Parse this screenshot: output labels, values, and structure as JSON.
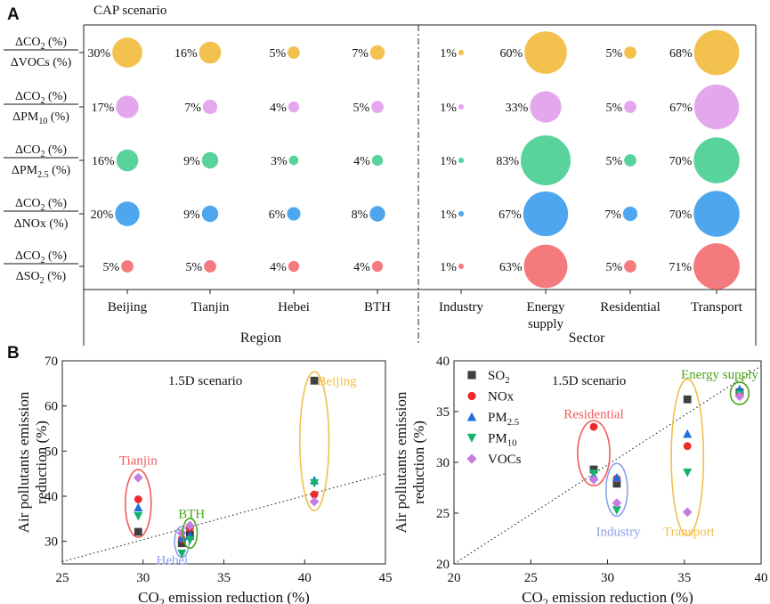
{
  "panel_a": {
    "letter": "A",
    "title": "CAP scenario",
    "rows": [
      {
        "label_num": "ΔCO",
        "num_sub": "2",
        "num_suffix": " (%)",
        "label_den": "ΔVOCs (%)",
        "den_sub": "",
        "den_suffix": "",
        "color": "#f2c14e"
      },
      {
        "label_num": "ΔCO",
        "num_sub": "2",
        "num_suffix": " (%)",
        "label_den": "ΔPM",
        "den_sub": "10",
        "den_suffix": " (%)",
        "color": "#e4a7ee"
      },
      {
        "label_num": "ΔCO",
        "num_sub": "2",
        "num_suffix": " (%)",
        "label_den": "ΔPM",
        "den_sub": "2.5",
        "den_suffix": " (%)",
        "color": "#59d39c"
      },
      {
        "label_num": "ΔCO",
        "num_sub": "2",
        "num_suffix": " (%)",
        "label_den": "ΔNOx (%)",
        "den_sub": "",
        "den_suffix": "",
        "color": "#4da6ee"
      },
      {
        "label_num": "ΔCO",
        "num_sub": "2",
        "num_suffix": " (%)",
        "label_den": "ΔSO",
        "den_sub": "2",
        "den_suffix": " (%)",
        "color": "#f57a7e"
      }
    ],
    "columns": [
      "Beijing",
      "Tianjin",
      "Hebei",
      "BTH",
      "Industry",
      "Energy supply",
      "Residential",
      "Transport"
    ],
    "column_lines": [
      [
        "Beijing"
      ],
      [
        "Tianjin"
      ],
      [
        "Hebei"
      ],
      [
        "BTH"
      ],
      [
        "Industry"
      ],
      [
        "Energy",
        "supply"
      ],
      [
        "Residential"
      ],
      [
        "Transport"
      ]
    ],
    "values": [
      [
        30,
        16,
        5,
        7,
        1,
        60,
        5,
        68
      ],
      [
        17,
        7,
        4,
        5,
        1,
        33,
        5,
        67
      ],
      [
        16,
        9,
        3,
        4,
        1,
        83,
        5,
        70
      ],
      [
        20,
        9,
        6,
        8,
        1,
        67,
        7,
        70
      ],
      [
        5,
        5,
        4,
        4,
        1,
        63,
        5,
        71
      ]
    ],
    "group_labels": [
      "Region",
      "Sector"
    ]
  },
  "panel_b": {
    "letter": "B",
    "ylabel_line1": "Air pollutants emission",
    "ylabel_line2": "reduction (%)",
    "xlabel_prefix": "CO",
    "xlabel_sub": "2",
    "xlabel_suffix": " emission reduction (%)",
    "legend": [
      {
        "name": "SO",
        "sub": "2",
        "marker": "square",
        "color": "#404040"
      },
      {
        "name": "NOx",
        "sub": "",
        "marker": "circle",
        "color": "#ee2b2b"
      },
      {
        "name": "PM",
        "sub": "2.5",
        "marker": "triangle-up",
        "color": "#1f6fe0"
      },
      {
        "name": "PM",
        "sub": "10",
        "marker": "triangle-down",
        "color": "#14b26a"
      },
      {
        "name": "VOCs",
        "sub": "",
        "marker": "diamond",
        "color": "#c77de0"
      }
    ]
  },
  "chart_data": [
    {
      "type": "bubble",
      "title": "CAP scenario",
      "columns": [
        "Beijing",
        "Tianjin",
        "Hebei",
        "BTH",
        "Industry",
        "Energy supply",
        "Residential",
        "Transport"
      ],
      "rows": [
        "ΔCO2/ΔVOCs",
        "ΔCO2/ΔPM10",
        "ΔCO2/ΔPM2.5",
        "ΔCO2/ΔNOx",
        "ΔCO2/ΔSO2"
      ],
      "unit": "%"
    },
    {
      "type": "scatter",
      "title": "1.5D scenario",
      "xlim": [
        25,
        45
      ],
      "ylim": [
        25,
        70
      ],
      "xticks": [
        25,
        30,
        35,
        40,
        45
      ],
      "yticks": [
        30,
        40,
        50,
        60,
        70
      ],
      "reference_line": {
        "x": [
          25,
          45
        ],
        "y": [
          25.5,
          45
        ]
      },
      "groups": [
        {
          "name": "Tianjin",
          "color": "#f05a5a",
          "x": 29.7,
          "values": {
            "SO2": 32.1,
            "NOx": 39.3,
            "PM2.5": 37.5,
            "PM10": 35.6,
            "VOCs": 44.1
          },
          "ellipse": {
            "cx": 29.7,
            "cy": 38.4,
            "rx": 0.8,
            "ry": 7.5
          },
          "label_pos": [
            29.7,
            48.0
          ]
        },
        {
          "name": "Hebei",
          "color": "#8ca0e8",
          "x": 32.4,
          "values": {
            "SO2": 29.6,
            "NOx": 30.5,
            "PM2.5": 30.8,
            "PM10": 27.3,
            "VOCs": 31.8
          },
          "ellipse": {
            "cx": 32.4,
            "cy": 29.9,
            "rx": 0.45,
            "ry": 3.4
          },
          "label_pos": [
            31.8,
            25.9
          ]
        },
        {
          "name": "BTH",
          "color": "#4aa61c",
          "x": 32.9,
          "values": {
            "SO2": 31.5,
            "NOx": 33.0,
            "PM2.5": 31.2,
            "PM10": 30.3,
            "VOCs": 33.5
          },
          "ellipse": {
            "cx": 32.9,
            "cy": 31.8,
            "rx": 0.45,
            "ry": 3.3
          },
          "label_pos": [
            33.0,
            36.2
          ]
        },
        {
          "name": "Beijing",
          "color": "#f2be4c",
          "x": 40.6,
          "values": {
            "SO2": 65.6,
            "NOx": 40.4,
            "PM2.5": 43.5,
            "PM10": 42.9,
            "VOCs": 38.8
          },
          "ellipse": {
            "cx": 40.6,
            "cy": 52.2,
            "rx": 0.9,
            "ry": 15.4
          },
          "label_pos": [
            42.0,
            65.6
          ]
        }
      ]
    },
    {
      "type": "scatter",
      "title": "1.5D scenario",
      "xlim": [
        20,
        40
      ],
      "ylim": [
        20,
        40
      ],
      "xticks": [
        20,
        25,
        30,
        35,
        40
      ],
      "yticks": [
        20,
        25,
        30,
        35,
        40
      ],
      "reference_line": {
        "x": [
          20,
          40
        ],
        "y": [
          20,
          39.5
        ]
      },
      "groups": [
        {
          "name": "Residential",
          "color": "#f05a5a",
          "x": 29.1,
          "values": {
            "SO2": 29.3,
            "NOx": 33.5,
            "PM2.5": 28.7,
            "PM10": 28.9,
            "VOCs": 28.3
          },
          "ellipse": {
            "cx": 29.1,
            "cy": 30.9,
            "rx": 1.05,
            "ry": 3.2
          },
          "label_pos": [
            29.1,
            34.8
          ]
        },
        {
          "name": "Industry",
          "color": "#8ca0e8",
          "x": 30.6,
          "values": {
            "SO2": 27.9,
            "NOx": 28.4,
            "PM2.5": 28.5,
            "PM10": 25.3,
            "VOCs": 26.0
          },
          "ellipse": {
            "cx": 30.6,
            "cy": 27.3,
            "rx": 0.7,
            "ry": 2.6
          },
          "label_pos": [
            30.7,
            23.2
          ]
        },
        {
          "name": "Transport",
          "color": "#f2be4c",
          "x": 35.2,
          "values": {
            "SO2": 36.2,
            "NOx": 31.6,
            "PM2.5": 32.8,
            "PM10": 29.0,
            "VOCs": 25.1
          },
          "ellipse": {
            "cx": 35.2,
            "cy": 30.5,
            "rx": 1.05,
            "ry": 7.7
          },
          "label_pos": [
            35.3,
            23.2
          ]
        },
        {
          "name": "Energy supply",
          "color": "#4aa61c",
          "x": 38.6,
          "values": {
            "SO2": 36.9,
            "NOx": 36.7,
            "PM2.5": 37.2,
            "PM10": 36.7,
            "VOCs": 36.5
          },
          "ellipse": {
            "cx": 38.6,
            "cy": 36.8,
            "rx": 0.6,
            "ry": 1.1
          },
          "label_pos": [
            37.3,
            38.7
          ]
        }
      ]
    }
  ]
}
